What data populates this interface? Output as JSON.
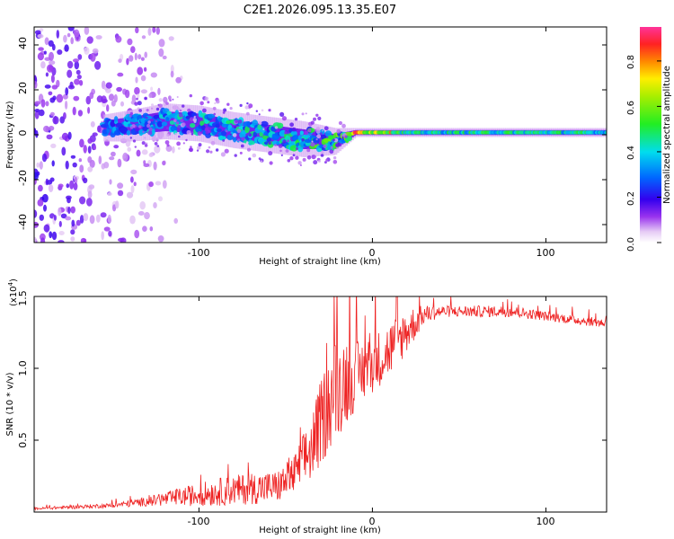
{
  "title": "C2E1.2026.095.13.35.E07",
  "chart_data": [
    {
      "type": "heatmap",
      "xlabel": "Height of straight line (km)",
      "ylabel": "Frequency (Hz)",
      "xlim": [
        -195,
        135
      ],
      "ylim": [
        -48,
        48
      ],
      "xticks": [
        -100,
        0,
        100
      ],
      "yticks": [
        -40,
        -20,
        0,
        20,
        40
      ],
      "colorbar": {
        "label": "Normalized spectral amplitude",
        "range": [
          0,
          0.95
        ],
        "ticks": [
          "0.0",
          "0.2",
          "0.4",
          "0.6",
          "0.8"
        ],
        "tick_values": [
          0,
          0.2,
          0.4,
          0.6,
          0.8
        ]
      },
      "ridge": {
        "x": [
          -155,
          -140,
          -120,
          -100,
          -80,
          -60,
          -40,
          -22,
          -10,
          0,
          10,
          20,
          60,
          100,
          135
        ],
        "center_hz": [
          3,
          4,
          6,
          5,
          2,
          0,
          -2,
          -3,
          1,
          1,
          1,
          1,
          1,
          1,
          1
        ],
        "spread_hz": [
          6,
          7,
          8,
          8,
          8,
          8,
          8,
          6,
          2,
          2,
          2,
          2,
          2,
          2,
          2
        ],
        "peak_amplitude": [
          0.3,
          0.35,
          0.4,
          0.45,
          0.45,
          0.45,
          0.5,
          0.6,
          0.95,
          0.85,
          0.85,
          0.5,
          0.55,
          0.55,
          0.5
        ]
      },
      "noise_region_x": [
        -195,
        -120
      ]
    },
    {
      "type": "line",
      "xlabel": "Height of straight line (km)",
      "ylabel": "SNR (10 * v/v)",
      "y_multiplier": "(x10",
      "y_multiplier_exp": "4",
      "y_multiplier_close": ")",
      "xlim": [
        -195,
        135
      ],
      "ylim": [
        0,
        1.5
      ],
      "xticks": [
        -100,
        0,
        100
      ],
      "yticks": [
        0.5,
        1.0,
        1.5
      ],
      "ytick_labels": [
        "0.5",
        "1.0",
        "1.5"
      ],
      "color": "#ee2222",
      "envelope": {
        "x": [
          -195,
          -150,
          -130,
          -110,
          -90,
          -70,
          -55,
          -45,
          -35,
          -28,
          -22,
          -15,
          -10,
          0,
          10,
          20,
          30,
          40,
          60,
          80,
          100,
          120,
          135
        ],
        "base": [
          0.02,
          0.04,
          0.06,
          0.08,
          0.1,
          0.12,
          0.13,
          0.2,
          0.35,
          0.55,
          0.7,
          0.8,
          0.85,
          0.95,
          1.05,
          1.2,
          1.35,
          1.38,
          1.38,
          1.38,
          1.35,
          1.32,
          1.3
        ],
        "noise": [
          0.01,
          0.02,
          0.04,
          0.08,
          0.12,
          0.14,
          0.14,
          0.18,
          0.3,
          0.4,
          0.45,
          0.4,
          0.3,
          0.25,
          0.25,
          0.2,
          0.08,
          0.05,
          0.05,
          0.05,
          0.04,
          0.04,
          0.04
        ]
      },
      "series": [
        {
          "name": "SNR"
        }
      ]
    }
  ],
  "axis_ticks": {
    "top_x": [
      "-100",
      "0",
      "100"
    ],
    "top_y": [
      "-40",
      "-20",
      "0",
      "20",
      "40"
    ],
    "bottom_x": [
      "-100",
      "0",
      "100"
    ]
  }
}
